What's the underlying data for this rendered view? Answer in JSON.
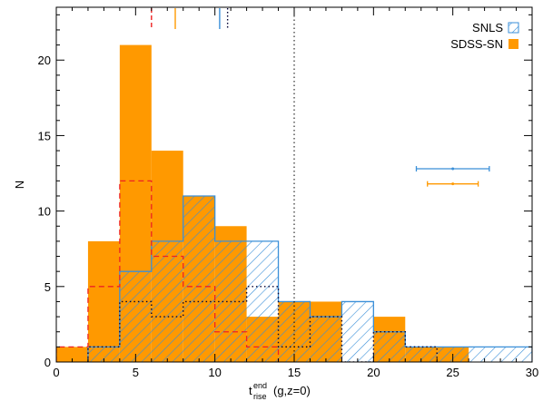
{
  "chart_data": {
    "type": "histogram",
    "xlim": [
      0,
      30
    ],
    "ylim": [
      0,
      23.5
    ],
    "xticks": [
      0,
      5,
      10,
      15,
      20,
      25,
      30
    ],
    "yticks": [
      0,
      5,
      10,
      15,
      20
    ],
    "xlabel": {
      "main": "t",
      "sup": "end",
      "sub": "rise",
      "rest": " (g,z=0)"
    },
    "ylabel": "N",
    "series": [
      {
        "name": "SDSS-SN",
        "style": "filled",
        "color": "#ff9900",
        "bins": [
          {
            "x0": 0,
            "x1": 2,
            "y": 1
          },
          {
            "x0": 2,
            "x1": 4,
            "y": 8
          },
          {
            "x0": 4,
            "x1": 6,
            "y": 21
          },
          {
            "x0": 6,
            "x1": 8,
            "y": 14
          },
          {
            "x0": 8,
            "x1": 10,
            "y": 11
          },
          {
            "x0": 10,
            "x1": 12,
            "y": 9
          },
          {
            "x0": 12,
            "x1": 14,
            "y": 3
          },
          {
            "x0": 14,
            "x1": 16,
            "y": 4
          },
          {
            "x0": 16,
            "x1": 18,
            "y": 4
          },
          {
            "x0": 18,
            "x1": 20,
            "y": 0
          },
          {
            "x0": 20,
            "x1": 22,
            "y": 3
          },
          {
            "x0": 22,
            "x1": 24,
            "y": 1
          },
          {
            "x0": 24,
            "x1": 26,
            "y": 1
          }
        ]
      },
      {
        "name": "SNLS",
        "style": "hatched",
        "color": "#3a8fd8",
        "bins": [
          {
            "x0": 2,
            "x1": 4,
            "y": 1
          },
          {
            "x0": 4,
            "x1": 6,
            "y": 6
          },
          {
            "x0": 6,
            "x1": 8,
            "y": 8
          },
          {
            "x0": 8,
            "x1": 10,
            "y": 11
          },
          {
            "x0": 10,
            "x1": 12,
            "y": 8
          },
          {
            "x0": 12,
            "x1": 14,
            "y": 8
          },
          {
            "x0": 14,
            "x1": 16,
            "y": 4
          },
          {
            "x0": 16,
            "x1": 18,
            "y": 3
          },
          {
            "x0": 18,
            "x1": 20,
            "y": 4
          },
          {
            "x0": 20,
            "x1": 22,
            "y": 2
          },
          {
            "x0": 22,
            "x1": 24,
            "y": 1
          },
          {
            "x0": 24,
            "x1": 26,
            "y": 1
          },
          {
            "x0": 26,
            "x1": 28,
            "y": 1
          },
          {
            "x0": 28,
            "x1": 30,
            "y": 1
          }
        ]
      },
      {
        "style": "dashed-outline",
        "color": "#ee2222",
        "bins": [
          {
            "x0": 0,
            "x1": 2,
            "y": 1
          },
          {
            "x0": 2,
            "x1": 4,
            "y": 5
          },
          {
            "x0": 4,
            "x1": 6,
            "y": 12
          },
          {
            "x0": 6,
            "x1": 8,
            "y": 7
          },
          {
            "x0": 8,
            "x1": 10,
            "y": 5
          },
          {
            "x0": 10,
            "x1": 12,
            "y": 2
          },
          {
            "x0": 12,
            "x1": 14,
            "y": 1
          }
        ]
      },
      {
        "style": "dotted-outline",
        "color": "#000033",
        "bins": [
          {
            "x0": 2,
            "x1": 4,
            "y": 1
          },
          {
            "x0": 4,
            "x1": 6,
            "y": 4
          },
          {
            "x0": 6,
            "x1": 8,
            "y": 3
          },
          {
            "x0": 8,
            "x1": 10,
            "y": 4
          },
          {
            "x0": 10,
            "x1": 12,
            "y": 4
          },
          {
            "x0": 12,
            "x1": 14,
            "y": 5
          },
          {
            "x0": 14,
            "x1": 16,
            "y": 1
          },
          {
            "x0": 16,
            "x1": 18,
            "y": 3
          },
          {
            "x0": 18,
            "x1": 20,
            "y": 0
          },
          {
            "x0": 20,
            "x1": 22,
            "y": 2
          },
          {
            "x0": 22,
            "x1": 24,
            "y": 1
          }
        ]
      }
    ],
    "top_markers": [
      {
        "x": 6.0,
        "color": "#ee2222",
        "style": "dashed"
      },
      {
        "x": 7.5,
        "color": "#ff9900",
        "style": "solid"
      },
      {
        "x": 10.3,
        "color": "#3a8fd8",
        "style": "solid"
      },
      {
        "x": 10.8,
        "color": "#000033",
        "style": "dotted"
      }
    ],
    "vertical_line": {
      "x": 15,
      "style": "dotted",
      "color": "#000000"
    },
    "error_bars": [
      {
        "series": "SNLS",
        "x": 25.0,
        "xerr": 2.3,
        "y": 12.8,
        "color": "#3a8fd8"
      },
      {
        "series": "SDSS-SN",
        "x": 25.0,
        "xerr": 1.6,
        "y": 11.8,
        "color": "#ff9900"
      }
    ],
    "legend": {
      "position": "top-right",
      "entries": [
        {
          "label": "SNLS",
          "swatch": "hatched",
          "color": "#3a8fd8"
        },
        {
          "label": "SDSS-SN",
          "swatch": "filled",
          "color": "#ff9900"
        }
      ]
    },
    "grid": false
  }
}
